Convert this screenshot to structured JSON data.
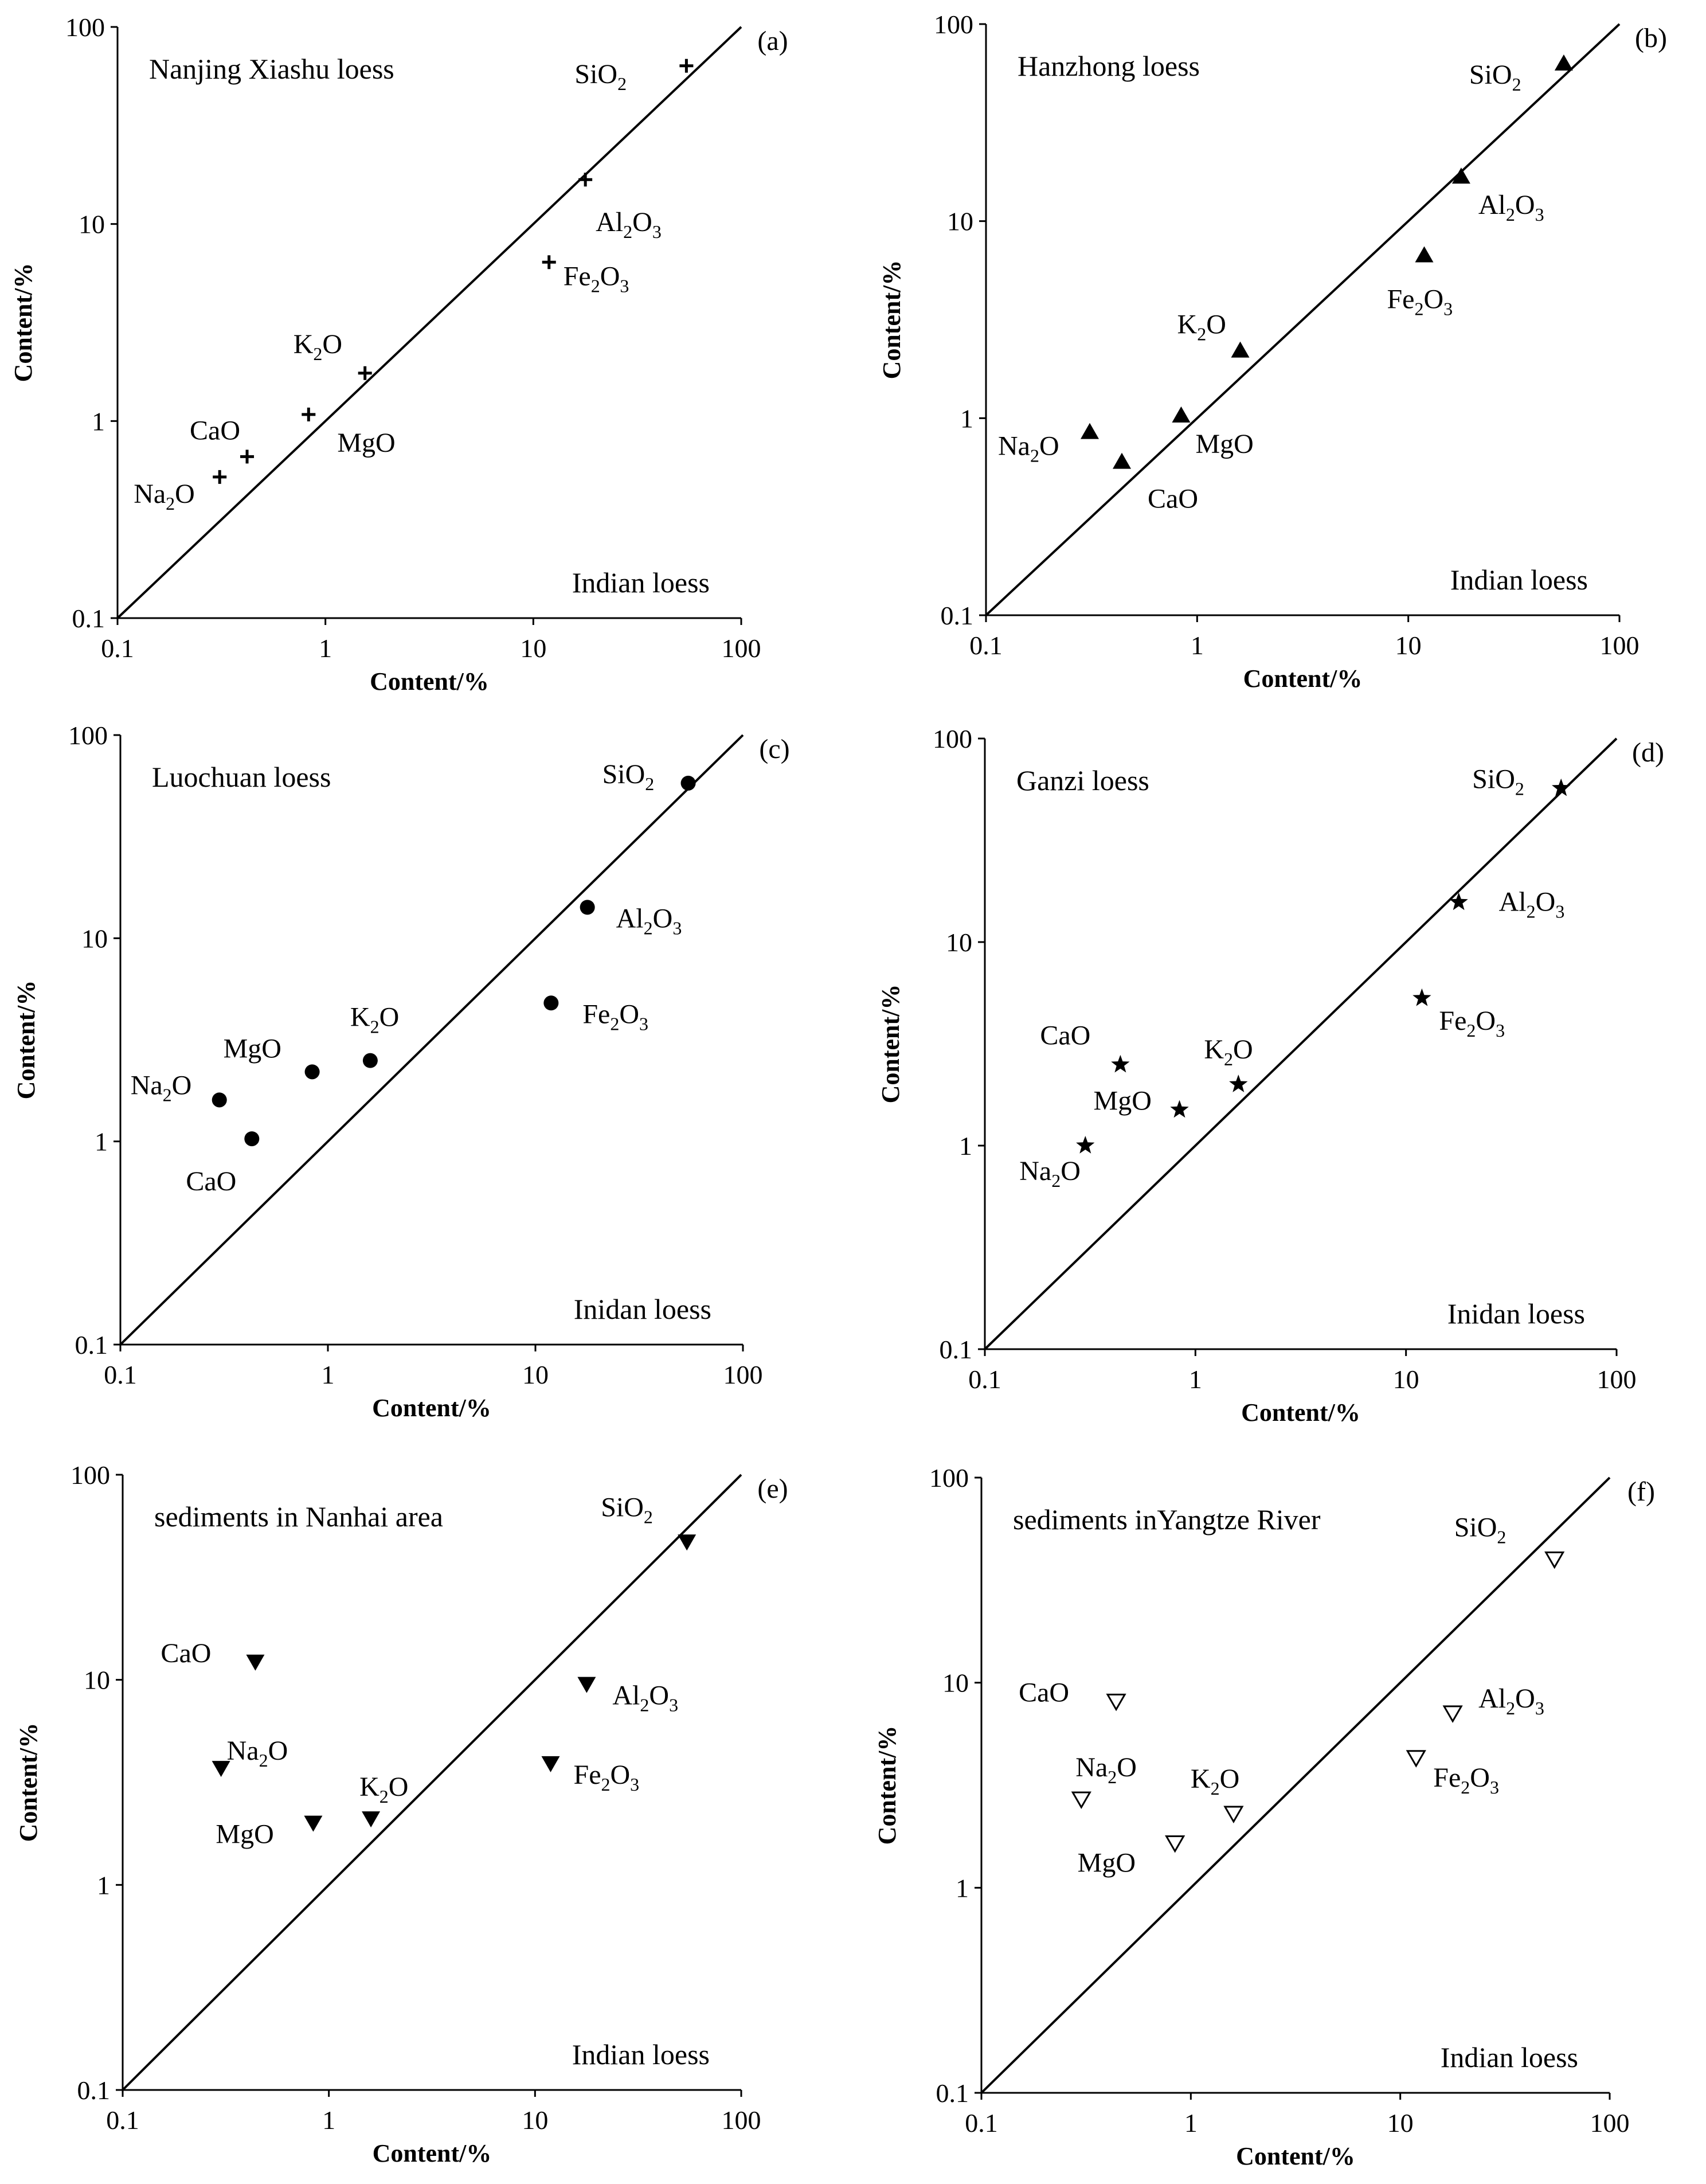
{
  "chart_data": [
    {
      "type": "scatter",
      "tag": "(a)",
      "title": "Nanjing Xiashu  loess",
      "corner_label": "Indian  loess",
      "xlabel": "Content/%",
      "ylabel": "Content/%",
      "xscale": "log",
      "yscale": "log",
      "xlim": [
        0.1,
        100
      ],
      "ylim": [
        0.1,
        100
      ],
      "xticks": [
        "0.1",
        "1",
        "10",
        "100"
      ],
      "yticks": [
        "0.1",
        "1",
        "10",
        "100"
      ],
      "marker": "plus",
      "reference_line": "y=x",
      "points": [
        {
          "label": "SiO",
          "sub": "2",
          "x": 54.5,
          "y": 63.5
        },
        {
          "label": "Al",
          "sub": "2",
          "label2": "O",
          "sub2": "3",
          "x": 17.8,
          "y": 16.8
        },
        {
          "label": "Fe",
          "sub": "2",
          "label2": "O",
          "sub2": "3",
          "x": 11.9,
          "y": 6.4
        },
        {
          "label": "K",
          "sub": "2",
          "label2": "O",
          "sub2": "",
          "x": 1.55,
          "y": 1.75
        },
        {
          "label": "MgO",
          "sub": "",
          "x": 0.83,
          "y": 1.08
        },
        {
          "label": "CaO",
          "sub": "",
          "x": 0.42,
          "y": 0.66
        },
        {
          "label": "Na",
          "sub": "2",
          "label2": "O",
          "sub2": "",
          "x": 0.31,
          "y": 0.52
        }
      ]
    },
    {
      "type": "scatter",
      "tag": "(b)",
      "title": "Hanzhong  loess",
      "corner_label": "Indian  loess",
      "xlabel": "Content/%",
      "ylabel": "Content/%",
      "xscale": "log",
      "yscale": "log",
      "xlim": [
        0.1,
        100
      ],
      "ylim": [
        0.1,
        100
      ],
      "xticks": [
        "0.1",
        "1",
        "10",
        "100"
      ],
      "yticks": [
        "0.1",
        "1",
        "10",
        "100"
      ],
      "marker": "triangle",
      "reference_line": "y=x",
      "points": [
        {
          "label": "SiO",
          "sub": "2",
          "x": 54.5,
          "y": 63
        },
        {
          "label": "Al",
          "sub": "2",
          "label2": "O",
          "sub2": "3",
          "x": 17.8,
          "y": 16.8
        },
        {
          "label": "Fe",
          "sub": "2",
          "label2": "O",
          "sub2": "3",
          "x": 11.9,
          "y": 6.7
        },
        {
          "label": "K",
          "sub": "2",
          "label2": "O",
          "sub2": "",
          "x": 1.6,
          "y": 2.2
        },
        {
          "label": "MgO",
          "sub": "",
          "x": 0.84,
          "y": 1.03
        },
        {
          "label": "Na",
          "sub": "2",
          "label2": "O",
          "sub2": "",
          "x": 0.31,
          "y": 0.85
        },
        {
          "label": "CaO",
          "sub": "",
          "x": 0.44,
          "y": 0.6
        }
      ]
    },
    {
      "type": "scatter",
      "tag": "(c)",
      "title": "Luochuan  loess",
      "corner_label": "Inidan  loess",
      "xlabel": "Content/%",
      "ylabel": "Content/%",
      "xscale": "log",
      "yscale": "log",
      "xlim": [
        0.1,
        100
      ],
      "ylim": [
        0.1,
        100
      ],
      "xticks": [
        "0.1",
        "1",
        "10",
        "100"
      ],
      "yticks": [
        "0.1",
        "1",
        "10",
        "100"
      ],
      "marker": "circle",
      "reference_line": "y=x",
      "points": [
        {
          "label": "SiO",
          "sub": "2",
          "x": 54.5,
          "y": 58
        },
        {
          "label": "Al",
          "sub": "2",
          "label2": "O",
          "sub2": "3",
          "x": 17.8,
          "y": 14.2
        },
        {
          "label": "Fe",
          "sub": "2",
          "label2": "O",
          "sub2": "3",
          "x": 11.9,
          "y": 4.8
        },
        {
          "label": "K",
          "sub": "2",
          "label2": "O",
          "sub2": "",
          "x": 1.6,
          "y": 2.5
        },
        {
          "label": "MgO",
          "sub": "",
          "x": 0.84,
          "y": 2.2
        },
        {
          "label": "Na",
          "sub": "2",
          "label2": "O",
          "sub2": "",
          "x": 0.3,
          "y": 1.6
        },
        {
          "label": "CaO",
          "sub": "",
          "x": 0.43,
          "y": 1.03
        }
      ]
    },
    {
      "type": "scatter",
      "tag": "(d)",
      "title": "Ganzi  loess",
      "corner_label": "Inidan  loess",
      "xlabel": "Content/%",
      "ylabel": "Content/%",
      "xscale": "log",
      "yscale": "log",
      "xlim": [
        0.1,
        100
      ],
      "ylim": [
        0.1,
        100
      ],
      "xticks": [
        "0.1",
        "1",
        "10",
        "100"
      ],
      "yticks": [
        "0.1",
        "1",
        "10",
        "100"
      ],
      "marker": "star",
      "reference_line": "y=x",
      "points": [
        {
          "label": "SiO",
          "sub": "2",
          "x": 54.5,
          "y": 57
        },
        {
          "label": "Al",
          "sub": "2",
          "label2": "O",
          "sub2": "3",
          "x": 17.8,
          "y": 15.7
        },
        {
          "label": "Fe",
          "sub": "2",
          "label2": "O",
          "sub2": "3",
          "x": 11.9,
          "y": 5.3
        },
        {
          "label": "CaO",
          "sub": "",
          "x": 0.44,
          "y": 2.5
        },
        {
          "label": "K",
          "sub": "2",
          "label2": "O",
          "sub2": "",
          "x": 1.6,
          "y": 2.0
        },
        {
          "label": "MgO",
          "sub": "",
          "x": 0.84,
          "y": 1.5
        },
        {
          "label": "Na",
          "sub": "2",
          "label2": "O",
          "sub2": "",
          "x": 0.3,
          "y": 1.0
        }
      ]
    },
    {
      "type": "scatter",
      "tag": "(e)",
      "title": "sediments in Nanhai area",
      "corner_label": "Indian  loess",
      "xlabel": "Content/%",
      "ylabel": "Content/%",
      "xscale": "log",
      "yscale": "log",
      "xlim": [
        0.1,
        100
      ],
      "ylim": [
        0.1,
        100
      ],
      "xticks": [
        "0.1",
        "1",
        "10",
        "100"
      ],
      "yticks": [
        "0.1",
        "1",
        "10",
        "100"
      ],
      "marker": "triangle-down",
      "reference_line": "y=x",
      "points": [
        {
          "label": "SiO",
          "sub": "2",
          "x": 54.5,
          "y": 47
        },
        {
          "label": "CaO",
          "sub": "",
          "x": 0.44,
          "y": 12.2
        },
        {
          "label": "Al",
          "sub": "2",
          "label2": "O",
          "sub2": "3",
          "x": 17.8,
          "y": 9.5
        },
        {
          "label": "Na",
          "sub": "2",
          "label2": "O",
          "sub2": "",
          "x": 0.3,
          "y": 3.7
        },
        {
          "label": "Fe",
          "sub": "2",
          "label2": "O",
          "sub2": "3",
          "x": 11.9,
          "y": 3.9
        },
        {
          "label": "K",
          "sub": "2",
          "label2": "O",
          "sub2": "",
          "x": 1.6,
          "y": 2.1
        },
        {
          "label": "MgO",
          "sub": "",
          "x": 0.84,
          "y": 2.0
        }
      ]
    },
    {
      "type": "scatter",
      "tag": "(f)",
      "title": "sediments inYangtze River",
      "corner_label": "Indian  loess",
      "xlabel": "Content/%",
      "ylabel": "Content/%",
      "xscale": "log",
      "yscale": "log",
      "xlim": [
        0.1,
        100
      ],
      "ylim": [
        0.1,
        100
      ],
      "xticks": [
        "0.1",
        "1",
        "10",
        "100"
      ],
      "yticks": [
        "0.1",
        "1",
        "10",
        "100"
      ],
      "marker": "triangle-down-open",
      "reference_line": "y=x",
      "points": [
        {
          "label": "SiO",
          "sub": "2",
          "x": 54.5,
          "y": 40
        },
        {
          "label": "CaO",
          "sub": "",
          "x": 0.44,
          "y": 8.1
        },
        {
          "label": "Al",
          "sub": "2",
          "label2": "O",
          "sub2": "3",
          "x": 17.8,
          "y": 7.1
        },
        {
          "label": "Fe",
          "sub": "2",
          "label2": "O",
          "sub2": "3",
          "x": 11.9,
          "y": 4.3
        },
        {
          "label": "Na",
          "sub": "2",
          "label2": "O",
          "sub2": "",
          "x": 0.3,
          "y": 2.7
        },
        {
          "label": "K",
          "sub": "2",
          "label2": "O",
          "sub2": "",
          "x": 1.6,
          "y": 2.3
        },
        {
          "label": "MgO",
          "sub": "",
          "x": 0.84,
          "y": 1.65
        }
      ]
    }
  ]
}
